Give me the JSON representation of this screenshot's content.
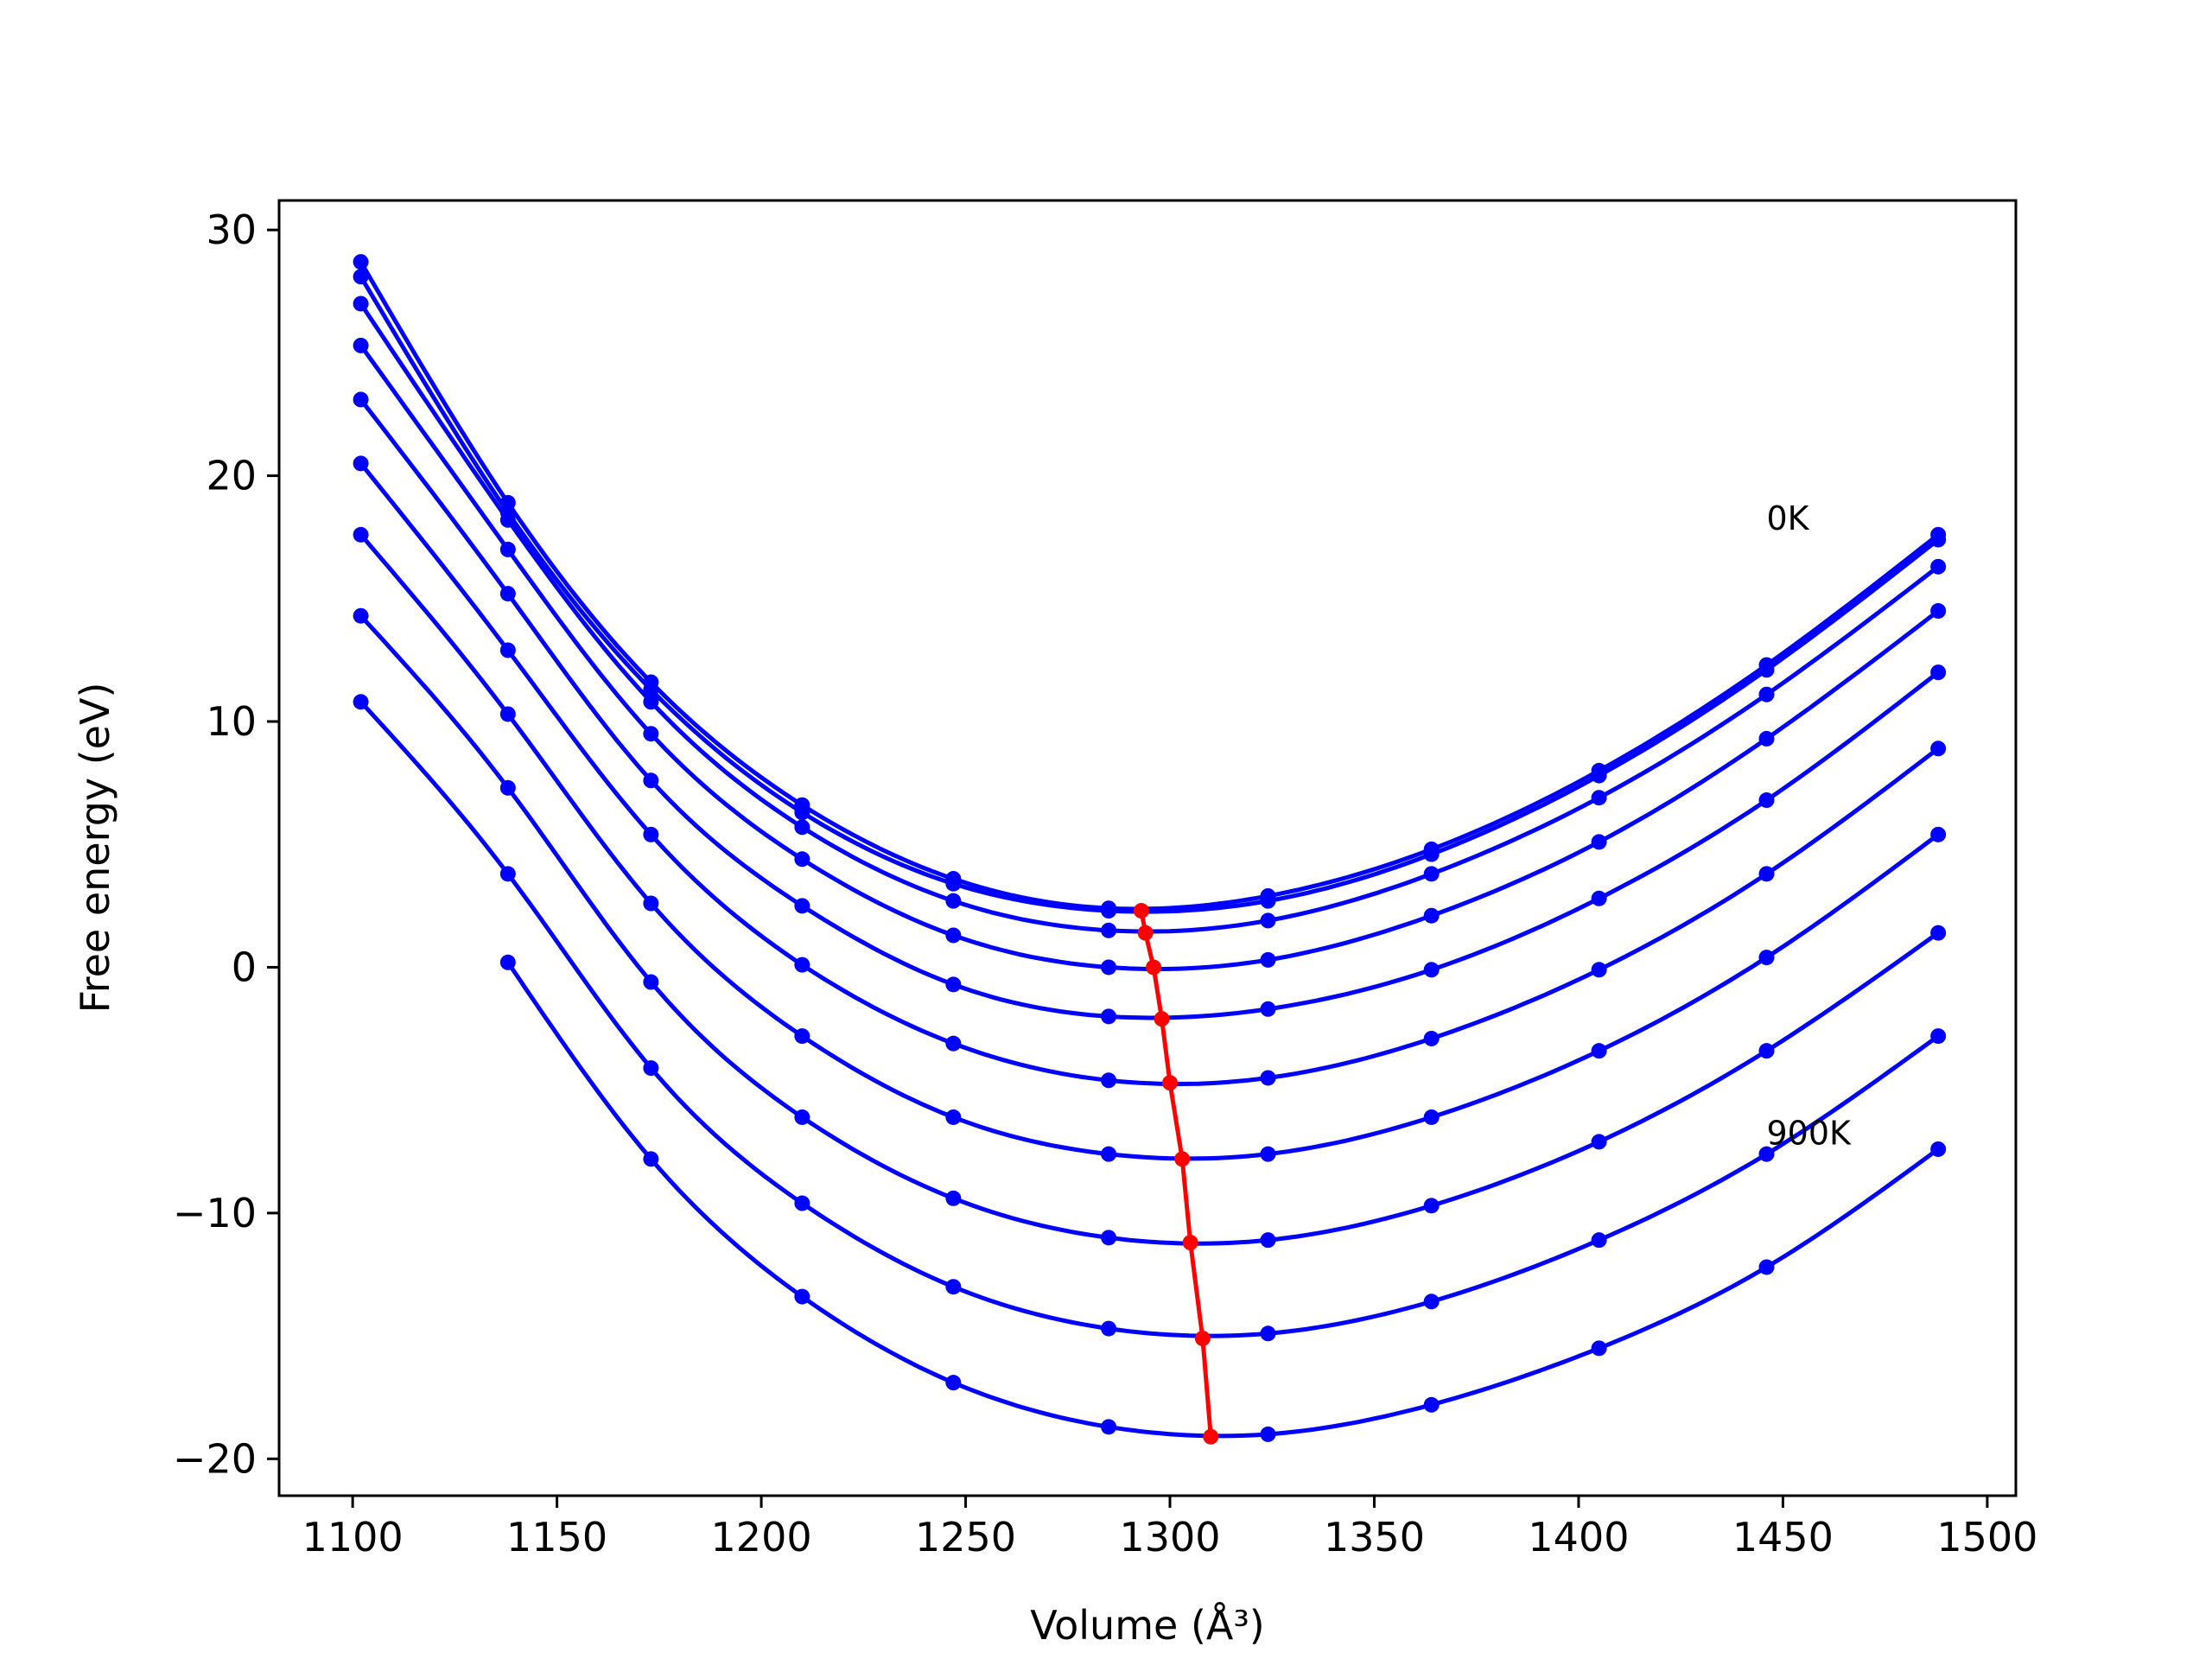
{
  "chart_data": {
    "type": "line",
    "title": "",
    "xlabel": "Volume (Å³)",
    "ylabel": "Free energy (eV)",
    "xlim": [
      1082,
      1507
    ],
    "ylim": [
      -21.5,
      31.2
    ],
    "xticks": [
      1100,
      1150,
      1200,
      1250,
      1300,
      1350,
      1400,
      1450,
      1500
    ],
    "yticks": [
      -20,
      -10,
      0,
      10,
      20,
      30
    ],
    "ytick_labels": [
      "−20",
      "−10",
      "0",
      "10",
      "20",
      "30"
    ],
    "grid": false,
    "legend": "none",
    "x": [
      1102,
      1138,
      1173,
      1210,
      1247,
      1285,
      1324,
      1364,
      1405,
      1446,
      1488
    ],
    "series": [
      {
        "values": [
          28.7,
          18.9,
          11.6,
          6.6,
          3.6,
          2.4,
          2.9,
          4.8,
          8.0,
          12.3,
          17.6
        ]
      },
      {
        "values": [
          28.1,
          18.5,
          11.3,
          6.3,
          3.4,
          2.3,
          2.7,
          4.6,
          7.8,
          12.1,
          17.4
        ]
      },
      {
        "values": [
          27.0,
          18.2,
          10.8,
          5.7,
          2.7,
          1.5,
          1.9,
          3.8,
          6.9,
          11.1,
          16.3
        ]
      },
      {
        "values": [
          25.3,
          17.0,
          9.5,
          4.4,
          1.3,
          0.0,
          0.3,
          2.1,
          5.1,
          9.3,
          14.5
        ]
      },
      {
        "values": [
          23.1,
          15.2,
          7.6,
          2.5,
          -0.7,
          -2.0,
          -1.7,
          -0.1,
          2.8,
          6.8,
          12.0
        ]
      },
      {
        "values": [
          20.5,
          12.9,
          5.4,
          0.1,
          -3.1,
          -4.6,
          -4.5,
          -2.9,
          -0.1,
          3.8,
          8.9
        ]
      },
      {
        "values": [
          17.6,
          10.3,
          2.6,
          -2.8,
          -6.1,
          -7.6,
          -7.6,
          -6.1,
          -3.4,
          0.4,
          5.4
        ]
      },
      {
        "values": [
          14.3,
          7.3,
          -0.6,
          -6.1,
          -9.4,
          -11.0,
          -11.1,
          -9.7,
          -7.1,
          -3.4,
          1.4
        ]
      },
      {
        "values": [
          10.8,
          3.8,
          -4.1,
          -9.6,
          -13.0,
          -14.7,
          -14.9,
          -13.6,
          -11.1,
          -7.6,
          -2.8
        ]
      },
      {
        "values": [
          null,
          0.2,
          -7.8,
          -13.4,
          -16.9,
          -18.7,
          -19.0,
          -17.8,
          -15.5,
          -12.2,
          -7.4
        ]
      }
    ],
    "minimum_line": {
      "x": [
        1293,
        1294,
        1296,
        1298,
        1300,
        1303,
        1305,
        1308,
        1310
      ],
      "y": [
        2.3,
        1.4,
        0.0,
        -2.1,
        -4.7,
        -7.8,
        -11.2,
        -15.1,
        -19.1
      ]
    },
    "colors": {
      "series": "#0000ff",
      "minimum_line": "#ff0000"
    },
    "annotations": [
      {
        "text": "0K",
        "x": 1446,
        "y": 17.8
      },
      {
        "text": "900K",
        "x": 1446,
        "y": -7.2
      }
    ]
  }
}
